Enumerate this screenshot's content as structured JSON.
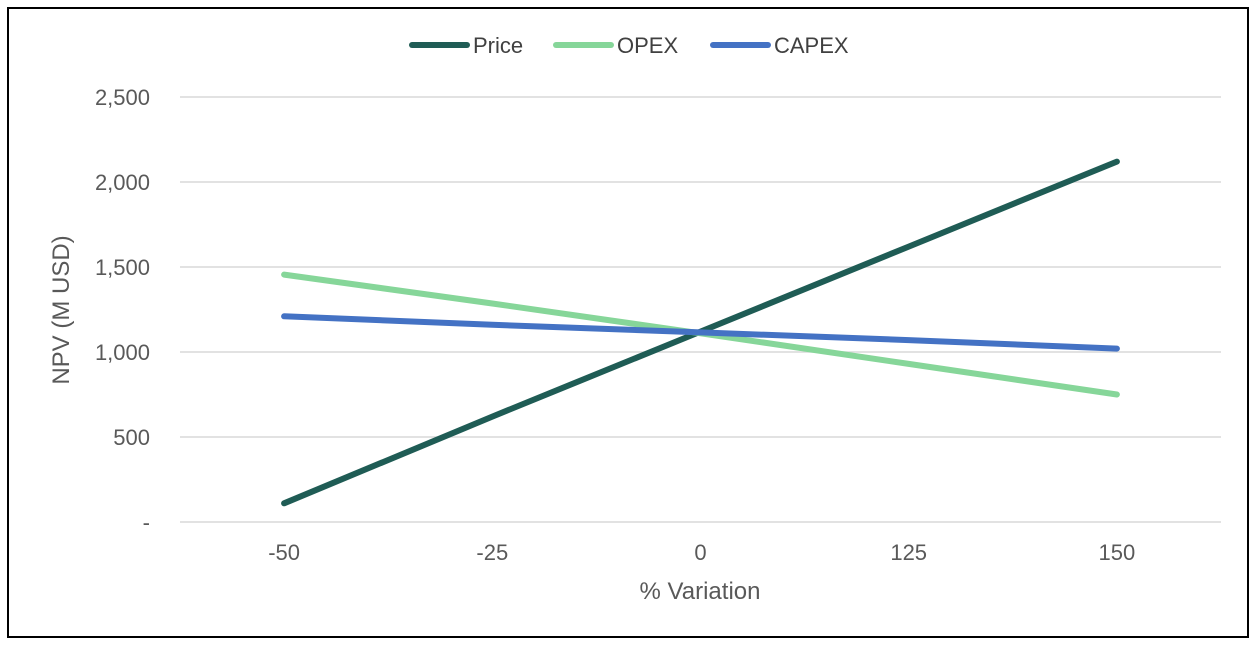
{
  "chart_data": {
    "type": "line",
    "title": "",
    "xlabel": "% Variation",
    "ylabel": "NPV (M USD)",
    "categories": [
      "-50",
      "-25",
      "0",
      "125",
      "150"
    ],
    "y_tick_labels": [
      "-",
      "500",
      "1,000",
      "1,500",
      "2,000",
      "2,500"
    ],
    "y_tick_values": [
      0,
      500,
      1000,
      1500,
      2000,
      2500
    ],
    "ylim": [
      0,
      2500
    ],
    "grid": true,
    "legend_position": "top-center",
    "series": [
      {
        "name": "Price",
        "color": "#1f5c55",
        "values": [
          110,
          620,
          1120,
          1620,
          2120
        ]
      },
      {
        "name": "OPEX",
        "color": "#86d699",
        "values": [
          1455,
          1285,
          1110,
          930,
          750
        ]
      },
      {
        "name": "CAPEX",
        "color": "#4472c4",
        "values": [
          1210,
          1160,
          1115,
          1070,
          1020
        ]
      }
    ]
  }
}
